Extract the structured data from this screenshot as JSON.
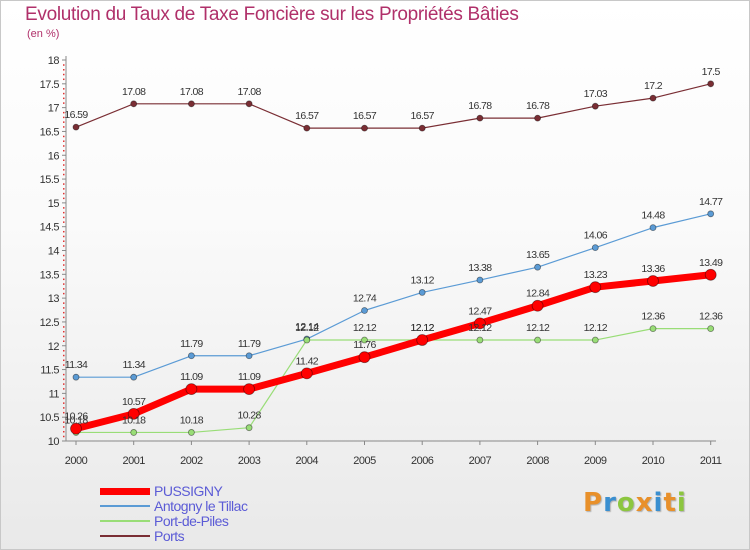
{
  "title": "Evolution du Taux de Taxe Foncière sur les Propriétés Bâties",
  "unit_label": "(en %)",
  "logo": {
    "letters": [
      "P",
      "r",
      "o",
      "x",
      "i",
      "t",
      "i"
    ],
    "colors": [
      "#e8902a",
      "#3a8fd0",
      "#8cc63f",
      "#e8902a",
      "#3a8fd0",
      "#e8902a",
      "#8cc63f"
    ]
  },
  "chart_data": {
    "type": "line",
    "x": [
      "2000",
      "2001",
      "2002",
      "2003",
      "2004",
      "2005",
      "2006",
      "2007",
      "2008",
      "2009",
      "2010",
      "2011"
    ],
    "ylim": [
      10,
      18
    ],
    "yticks": [
      "10",
      "10.5",
      "11",
      "11.5",
      "12",
      "12.5",
      "13",
      "13.5",
      "14",
      "14.5",
      "15",
      "15.5",
      "16",
      "16.5",
      "17",
      "17.5",
      "18"
    ],
    "grid": false,
    "legend_position": "bottom-left",
    "series": [
      {
        "name": "PUSSIGNY",
        "color": "#ff0000",
        "values": [
          10.26,
          10.57,
          11.09,
          11.09,
          11.42,
          11.76,
          12.12,
          12.47,
          12.84,
          13.23,
          13.36,
          13.49
        ],
        "labels": [
          "10.26",
          "10.57",
          "11.09",
          "11.09",
          "11.42",
          "11.76",
          "12.12",
          "12.47",
          "12.84",
          "13.23",
          "13.36",
          "13.49"
        ]
      },
      {
        "name": "Antogny le Tillac",
        "color": "#5b9bd5",
        "values": [
          11.34,
          11.34,
          11.79,
          11.79,
          12.14,
          12.74,
          13.12,
          13.38,
          13.65,
          14.06,
          14.48,
          14.77
        ],
        "labels": [
          "11.34",
          "11.34",
          "11.79",
          "11.79",
          "12.14",
          "12.74",
          "13.12",
          "13.38",
          "13.65",
          "14.06",
          "14.48",
          "14.77"
        ]
      },
      {
        "name": "Port-de-Piles",
        "color": "#99dd77",
        "values": [
          10.18,
          10.18,
          10.18,
          10.28,
          12.12,
          12.12,
          12.12,
          12.12,
          12.12,
          12.12,
          12.36,
          12.36
        ],
        "labels": [
          "10.18",
          "10.18",
          "10.18",
          "10.28",
          "12.12",
          "12.12",
          "12.12",
          "12.12",
          "12.12",
          "12.12",
          "12.36",
          "12.36"
        ]
      },
      {
        "name": "Ports",
        "color": "#7a2e34",
        "values": [
          16.59,
          17.08,
          17.08,
          17.08,
          16.57,
          16.57,
          16.57,
          16.78,
          16.78,
          17.03,
          17.2,
          17.5
        ],
        "labels": [
          "16.59",
          "17.08",
          "17.08",
          "17.08",
          "16.57",
          "16.57",
          "16.57",
          "16.78",
          "16.78",
          "17.03",
          "17.2",
          "17.5"
        ]
      }
    ]
  }
}
